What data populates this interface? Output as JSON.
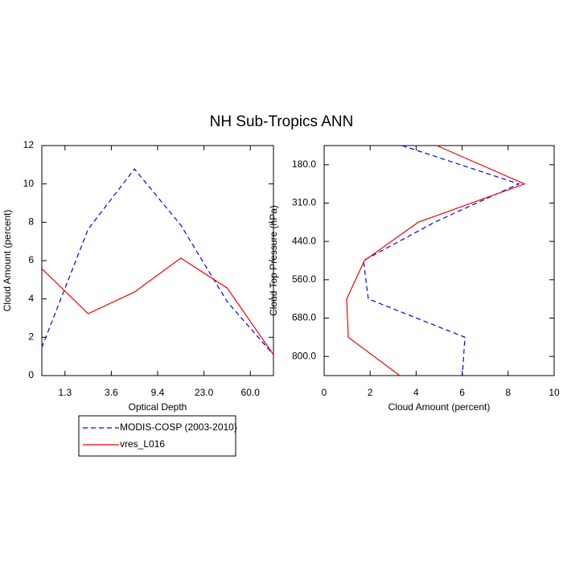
{
  "title": "NH Sub-Tropics ANN",
  "chart_data": [
    {
      "type": "line",
      "xlabel": "Optical Depth",
      "ylabel": "Cloud Amount (percent)",
      "x": [
        0,
        1,
        2,
        3,
        4,
        5
      ],
      "xlim": [
        0,
        5
      ],
      "xticks": [
        {
          "value": 0.5,
          "label": "1.3"
        },
        {
          "value": 1.5,
          "label": "3.6"
        },
        {
          "value": 2.5,
          "label": "9.4"
        },
        {
          "value": 3.5,
          "label": "23.0"
        },
        {
          "value": 4.5,
          "label": "60.0"
        }
      ],
      "ylim": [
        0,
        12
      ],
      "yticks": [
        0,
        2,
        4,
        6,
        8,
        10,
        12
      ],
      "series": [
        {
          "name": "MODIS-COSP (2003-2010)",
          "color": "#0000ff",
          "line_style": "dashed",
          "values": [
            1.47,
            7.64,
            10.78,
            7.85,
            3.86,
            1.09
          ]
        },
        {
          "name": "vres_L016",
          "color": "#ff0000",
          "line_style": "solid",
          "values": [
            5.58,
            3.23,
            4.36,
            6.13,
            4.57,
            1.09
          ]
        }
      ]
    },
    {
      "type": "line",
      "orientation": "horizontal",
      "xlabel": "Cloud Amount (percent)",
      "ylabel": "Cloud Top Pressure (hPa)",
      "xlim": [
        0,
        10
      ],
      "xticks": [
        0,
        2,
        4,
        6,
        8,
        10
      ],
      "y": [
        0,
        1,
        2,
        3,
        4,
        5,
        6
      ],
      "ylim": [
        6,
        0
      ],
      "yticks": [
        {
          "value": 0.5,
          "label": "180.0"
        },
        {
          "value": 1.5,
          "label": "310.0"
        },
        {
          "value": 2.5,
          "label": "440.0"
        },
        {
          "value": 3.5,
          "label": "560.0"
        },
        {
          "value": 4.5,
          "label": "680.0"
        },
        {
          "value": 5.5,
          "label": "800.0"
        }
      ],
      "series": [
        {
          "color": "#0000ff",
          "line_style": "dashed",
          "values": [
            3.39,
            8.46,
            4.8,
            1.71,
            1.92,
            6.12,
            6.01
          ]
        },
        {
          "color": "#ff0000",
          "line_style": "solid",
          "values": [
            4.9,
            8.71,
            4.09,
            1.75,
            0.98,
            1.05,
            3.29
          ]
        }
      ]
    }
  ]
}
